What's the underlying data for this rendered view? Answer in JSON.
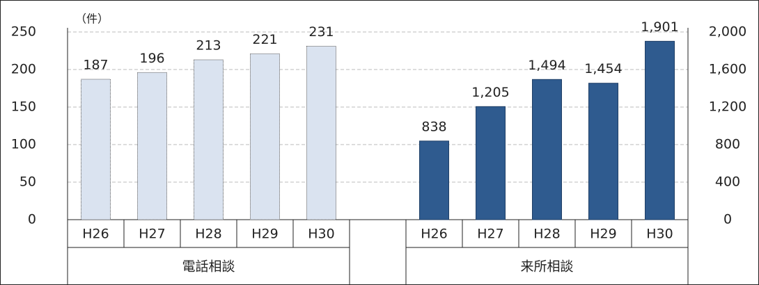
{
  "chart_data": {
    "type": "bar",
    "ylabel": "（件）",
    "categories": [
      "H26",
      "H27",
      "H28",
      "H29",
      "H30"
    ],
    "series": [
      {
        "name": "電話相談",
        "color": "#dae3f0",
        "values": [
          187,
          196,
          213,
          221,
          231
        ],
        "axis": "y"
      },
      {
        "name": "来所相談",
        "color": "#2f5b8f",
        "values": [
          838,
          1205,
          1494,
          1454,
          1901
        ],
        "value_labels": [
          "838",
          "1,205",
          "1,494",
          "1,454",
          "1,901"
        ],
        "axis": "y2"
      }
    ],
    "ylim": [
      0,
      250
    ],
    "yticks": [
      0,
      50,
      100,
      150,
      200,
      250
    ],
    "y2lim": [
      0,
      2000
    ],
    "y2ticks": [
      0,
      400,
      800,
      {
        "value": 1200,
        "label": "1,200"
      },
      {
        "value": 1600,
        "label": "1,600"
      },
      {
        "value": 2000,
        "label": "2,000"
      }
    ],
    "grid": true
  }
}
